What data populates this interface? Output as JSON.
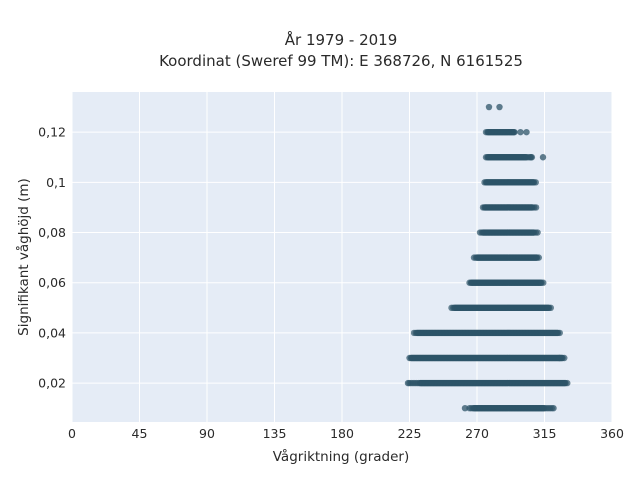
{
  "chart_data": {
    "type": "scatter",
    "title_line1": "År 1979 - 2019",
    "title_line2": "Koordinat (Sweref 99 TM): E 368726, N 6161525",
    "xlabel": "Vågriktning (grader)",
    "ylabel": "Signifikant våghöjd (m)",
    "xlim": [
      0,
      360
    ],
    "ylim": [
      0.0045,
      0.136
    ],
    "xticks": [
      0,
      45,
      90,
      135,
      180,
      225,
      270,
      315,
      360
    ],
    "yticks": [
      0.02,
      0.04,
      0.06,
      0.08,
      0.1,
      0.12
    ],
    "ytick_labels": [
      "0,02",
      "0,04",
      "0,06",
      "0,08",
      "0,1",
      "0,12"
    ],
    "grid": true,
    "marker_color": "#2e5468",
    "plot_background": "#e5ecf6",
    "rows": [
      {
        "y": 0.01,
        "x_min": 265,
        "x_max": 320,
        "dense_min": 268,
        "dense_max": 315
      },
      {
        "y": 0.02,
        "x_min": 225,
        "x_max": 331,
        "dense_min": 232,
        "dense_max": 329
      },
      {
        "y": 0.03,
        "x_min": 225,
        "x_max": 329,
        "dense_min": 226,
        "dense_max": 327
      },
      {
        "y": 0.04,
        "x_min": 228,
        "x_max": 326,
        "dense_min": 230,
        "dense_max": 324
      },
      {
        "y": 0.05,
        "x_min": 253,
        "x_max": 320,
        "dense_min": 255,
        "dense_max": 318
      },
      {
        "y": 0.06,
        "x_min": 265,
        "x_max": 315,
        "dense_min": 266,
        "dense_max": 313
      },
      {
        "y": 0.07,
        "x_min": 268,
        "x_max": 312,
        "dense_min": 270,
        "dense_max": 310
      },
      {
        "y": 0.08,
        "x_min": 272,
        "x_max": 311,
        "dense_min": 274,
        "dense_max": 308
      },
      {
        "y": 0.09,
        "x_min": 274,
        "x_max": 310,
        "dense_min": 275,
        "dense_max": 307
      },
      {
        "y": 0.1,
        "x_min": 275,
        "x_max": 310,
        "dense_min": 276,
        "dense_max": 308
      },
      {
        "y": 0.11,
        "x_min": 276,
        "x_max": 307,
        "dense_min": 277,
        "dense_max": 303
      },
      {
        "y": 0.12,
        "x_min": 276,
        "x_max": 296,
        "dense_min": 277,
        "dense_max": 295
      }
    ],
    "extra_points": [
      {
        "x": 278,
        "y": 0.13
      },
      {
        "x": 285,
        "y": 0.13
      },
      {
        "x": 299,
        "y": 0.12
      },
      {
        "x": 303,
        "y": 0.12
      },
      {
        "x": 306,
        "y": 0.11
      },
      {
        "x": 314,
        "y": 0.11
      },
      {
        "x": 325,
        "y": 0.03
      },
      {
        "x": 224,
        "y": 0.02
      },
      {
        "x": 262,
        "y": 0.01
      },
      {
        "x": 321,
        "y": 0.01
      }
    ]
  }
}
